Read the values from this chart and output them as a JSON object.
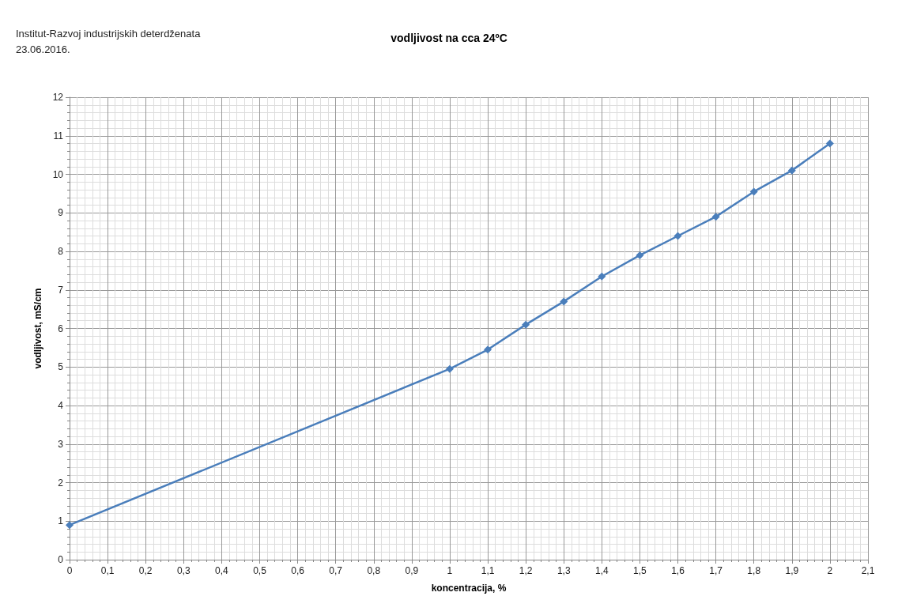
{
  "chart_data": {
    "type": "line",
    "title": "vodljivost na cca 24ºC",
    "annotations": [
      "Institut-Razvoj industrijskih deterdženata",
      "23.06.2016."
    ],
    "xlabel": "koncentracija, %",
    "ylabel": "vodljivost, mS/cm",
    "x": [
      0,
      1,
      1.1,
      1.2,
      1.3,
      1.4,
      1.5,
      1.6,
      1.7,
      1.8,
      1.9,
      2
    ],
    "series": [
      {
        "color": "#4a7ebb",
        "values": [
          0.9,
          4.95,
          5.45,
          6.1,
          6.7,
          7.35,
          7.9,
          8.4,
          8.9,
          9.55,
          10.1,
          10.8
        ]
      }
    ],
    "xlim": [
      0,
      2.1
    ],
    "xticks": [
      0,
      {
        "value": 0.1,
        "label": "0,1"
      },
      {
        "value": 0.2,
        "label": "0,2"
      },
      {
        "value": 0.3,
        "label": "0,3"
      },
      {
        "value": 0.4,
        "label": "0,4"
      },
      {
        "value": 0.5,
        "label": "0,5"
      },
      {
        "value": 0.6,
        "label": "0,6"
      },
      {
        "value": 0.7,
        "label": "0,7"
      },
      {
        "value": 0.8,
        "label": "0,8"
      },
      {
        "value": 0.9,
        "label": "0,9"
      },
      1,
      {
        "value": 1.1,
        "label": "1,1"
      },
      {
        "value": 1.2,
        "label": "1,2"
      },
      {
        "value": 1.3,
        "label": "1,3"
      },
      {
        "value": 1.4,
        "label": "1,4"
      },
      {
        "value": 1.5,
        "label": "1,5"
      },
      {
        "value": 1.6,
        "label": "1,6"
      },
      {
        "value": 1.7,
        "label": "1,7"
      },
      {
        "value": 1.8,
        "label": "1,8"
      },
      {
        "value": 1.9,
        "label": "1,9"
      },
      2,
      {
        "value": 2.1,
        "label": "2,1"
      }
    ],
    "ylim": [
      0,
      12
    ],
    "yticks": [
      0,
      1,
      2,
      3,
      4,
      5,
      6,
      7,
      8,
      9,
      10,
      11,
      12
    ],
    "grid": true,
    "marker": "diamond",
    "line_style": "solid"
  }
}
